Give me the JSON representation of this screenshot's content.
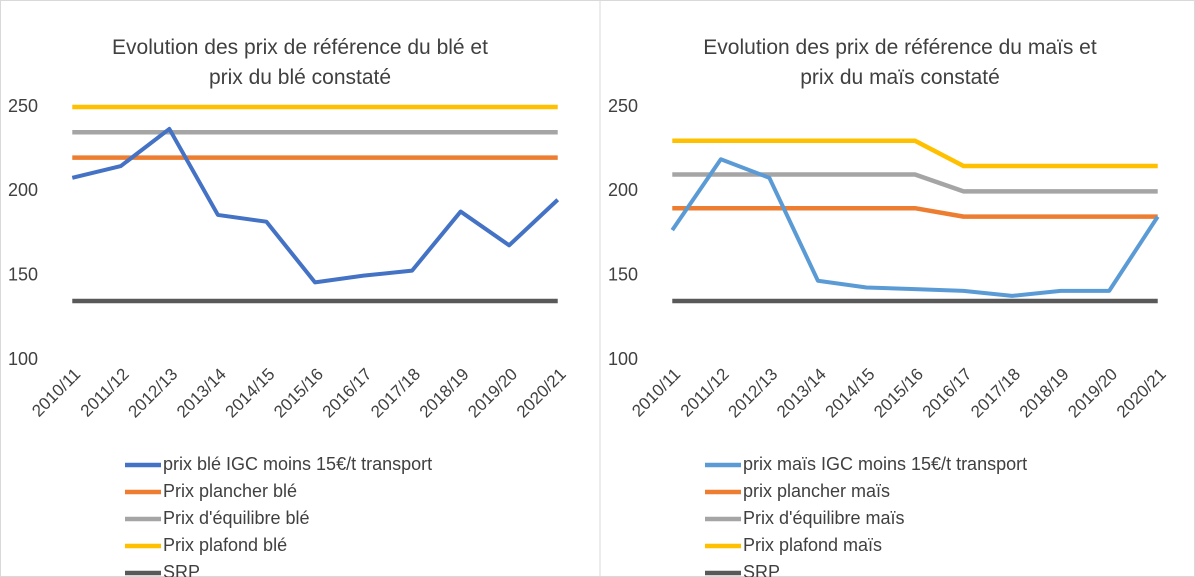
{
  "chart_data": [
    {
      "type": "line",
      "title": "Evolution des prix de référence du blé et prix du blé constaté",
      "categories": [
        "2010/11",
        "2011/12",
        "2012/13",
        "2013/14",
        "2014/15",
        "2015/16",
        "2016/17",
        "2017/18",
        "2018/19",
        "2019/20",
        "2020/21"
      ],
      "series": [
        {
          "name": "prix blé IGC moins 15€/t transport",
          "color": "#4472c4",
          "values": [
            208,
            215,
            237,
            186,
            182,
            146,
            150,
            153,
            188,
            168,
            195
          ]
        },
        {
          "name": "Prix plancher blé",
          "color": "#ed7d31",
          "values": [
            220,
            220,
            220,
            220,
            220,
            220,
            220,
            220,
            220,
            220,
            220
          ]
        },
        {
          "name": "Prix d'équilibre blé",
          "color": "#a5a5a5",
          "values": [
            235,
            235,
            235,
            235,
            235,
            235,
            235,
            235,
            235,
            235,
            235
          ]
        },
        {
          "name": "Prix plafond blé",
          "color": "#ffc000",
          "values": [
            250,
            250,
            250,
            250,
            250,
            250,
            250,
            250,
            250,
            250,
            250
          ]
        },
        {
          "name": "SRP",
          "color": "#595959",
          "values": [
            135,
            135,
            135,
            135,
            135,
            135,
            135,
            135,
            135,
            135,
            135
          ]
        }
      ],
      "ylim": [
        100,
        250
      ],
      "yticks": [
        100,
        150,
        200,
        250
      ]
    },
    {
      "type": "line",
      "title": "Evolution des prix de référence du maïs et prix du maïs constaté",
      "categories": [
        "2010/11",
        "2011/12",
        "2012/13",
        "2013/14",
        "2014/15",
        "2015/16",
        "2016/17",
        "2017/18",
        "2018/19",
        "2019/20",
        "2020/21"
      ],
      "series": [
        {
          "name": "prix maïs IGC moins 15€/t transport",
          "color": "#5b9bd5",
          "values": [
            177,
            219,
            208,
            147,
            143,
            142,
            141,
            138,
            141,
            141,
            185
          ]
        },
        {
          "name": "prix plancher maïs",
          "color": "#ed7d31",
          "values": [
            190,
            190,
            190,
            190,
            190,
            190,
            185,
            185,
            185,
            185,
            185
          ]
        },
        {
          "name": "Prix d'équilibre maïs",
          "color": "#a5a5a5",
          "values": [
            210,
            210,
            210,
            210,
            210,
            210,
            200,
            200,
            200,
            200,
            200
          ]
        },
        {
          "name": "Prix plafond maïs",
          "color": "#ffc000",
          "values": [
            230,
            230,
            230,
            230,
            230,
            230,
            215,
            215,
            215,
            215,
            215
          ]
        },
        {
          "name": "SRP",
          "color": "#595959",
          "values": [
            135,
            135,
            135,
            135,
            135,
            135,
            135,
            135,
            135,
            135,
            135
          ]
        }
      ],
      "ylim": [
        100,
        250
      ],
      "yticks": [
        100,
        150,
        200,
        250
      ]
    }
  ]
}
